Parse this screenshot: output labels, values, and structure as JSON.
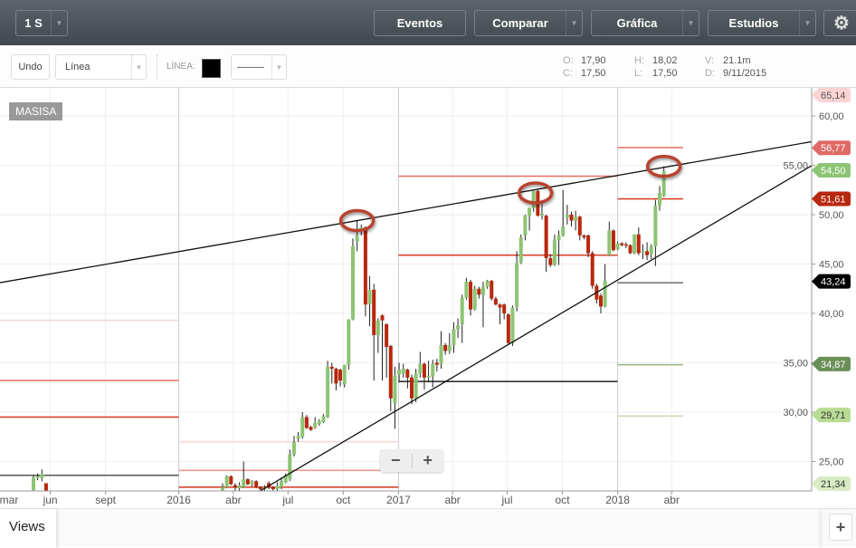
{
  "topbar": {
    "period": "1 S",
    "buttons": [
      "Eventos",
      "Comparar",
      "Gráfica",
      "Estudios"
    ],
    "settings_icon": "gear-icon"
  },
  "drawing_toolbar": {
    "undo": "Undo",
    "tool": "Línea",
    "line_label": "LÍNEA:",
    "line_color": "#000000",
    "line_style": "———"
  },
  "ohlc": {
    "o_label": "O:",
    "o": "17,90",
    "c_label": "C:",
    "c": "17,50",
    "h_label": "H:",
    "h": "18,02",
    "l_label": "L:",
    "l": "17,50",
    "v_label": "V:",
    "v": "21.1m",
    "d_label": "D:",
    "d": "9/11/2015"
  },
  "symbol": "MASISA",
  "zoom": {
    "minus": "−",
    "plus": "+"
  },
  "views": {
    "label": "Views",
    "add": "+"
  },
  "chart_data": {
    "type": "candlestick",
    "interval": "1 S",
    "ylim": [
      22.0,
      62.8
    ],
    "y_ticks": [
      "60,00",
      "55,00",
      "50,00",
      "45,00",
      "40,00",
      "35,00",
      "30,00",
      "25,00"
    ],
    "y_tick_values": [
      60,
      55,
      50,
      45,
      40,
      35,
      30,
      25
    ],
    "x_ticks": [
      {
        "date": "2015-03-01",
        "label": "mar"
      },
      {
        "date": "2015-06-01",
        "label": "jun"
      },
      {
        "date": "2015-09-01",
        "label": "sept"
      },
      {
        "date": "2016-01-01",
        "label": "2016",
        "year": true
      },
      {
        "date": "2016-04-01",
        "label": "abr"
      },
      {
        "date": "2016-07-01",
        "label": "jul"
      },
      {
        "date": "2016-10-01",
        "label": "oct"
      },
      {
        "date": "2017-01-01",
        "label": "2017",
        "year": true
      },
      {
        "date": "2017-04-01",
        "label": "abr"
      },
      {
        "date": "2017-07-01",
        "label": "jul"
      },
      {
        "date": "2017-10-01",
        "label": "oct"
      },
      {
        "date": "2018-01-01",
        "label": "2018",
        "year": true
      },
      {
        "date": "2018-04-01",
        "label": "abr"
      }
    ],
    "grid": true,
    "colors": {
      "up": "#8cc474",
      "down": "#b8280e",
      "wick": "#222222"
    },
    "candles": [
      [
        "2015-05-04",
        22.1,
        23.6,
        22.0,
        23.4
      ],
      [
        "2015-05-11",
        23.4,
        23.8,
        23.1,
        23.5
      ],
      [
        "2015-05-18",
        23.3,
        24.2,
        23.0,
        23.7
      ],
      [
        "2015-05-25",
        22.8,
        22.8,
        22.0,
        22.0
      ],
      [
        "2016-03-14",
        22.1,
        22.8,
        22.0,
        22.4
      ],
      [
        "2016-03-21",
        22.4,
        23.6,
        22.3,
        23.5
      ],
      [
        "2016-03-28",
        23.5,
        23.6,
        22.6,
        22.7
      ],
      [
        "2016-04-04",
        22.6,
        22.8,
        22.0,
        22.4
      ],
      [
        "2016-04-11",
        22.3,
        22.9,
        22.0,
        22.6
      ],
      [
        "2016-04-18",
        22.4,
        25.0,
        22.3,
        23.2
      ],
      [
        "2016-04-25",
        23.2,
        23.3,
        22.6,
        22.7
      ],
      [
        "2016-05-02",
        22.7,
        23.1,
        22.5,
        23.0
      ],
      [
        "2016-05-09",
        23.0,
        23.1,
        22.3,
        22.4
      ],
      [
        "2016-05-16",
        22.4,
        22.5,
        22.0,
        22.2
      ],
      [
        "2016-05-23",
        22.2,
        22.6,
        22.0,
        22.4
      ],
      [
        "2016-05-30",
        22.8,
        23.0,
        22.2,
        22.4
      ],
      [
        "2016-06-06",
        22.4,
        22.5,
        22.0,
        22.2
      ],
      [
        "2016-06-13",
        22.2,
        22.9,
        22.0,
        22.5
      ],
      [
        "2016-06-20",
        22.4,
        23.4,
        22.2,
        23.0
      ],
      [
        "2016-06-27",
        22.9,
        23.8,
        22.8,
        23.6
      ],
      [
        "2016-07-04",
        23.2,
        26.2,
        23.0,
        25.7
      ],
      [
        "2016-07-11",
        25.7,
        27.6,
        25.5,
        27.0
      ],
      [
        "2016-07-18",
        27.3,
        28.0,
        27.0,
        27.6
      ],
      [
        "2016-07-25",
        27.5,
        30.0,
        27.3,
        29.5
      ],
      [
        "2016-08-01",
        29.5,
        29.7,
        28.3,
        28.4
      ],
      [
        "2016-08-08",
        28.5,
        28.6,
        28.1,
        28.2
      ],
      [
        "2016-08-15",
        28.4,
        29.5,
        28.3,
        28.9
      ],
      [
        "2016-08-22",
        28.8,
        29.3,
        28.6,
        29.1
      ],
      [
        "2016-08-29",
        29.0,
        29.8,
        28.9,
        29.6
      ],
      [
        "2016-09-05",
        29.5,
        35.2,
        29.4,
        34.6
      ],
      [
        "2016-09-12",
        34.6,
        35.0,
        32.9,
        34.4
      ],
      [
        "2016-09-19",
        34.4,
        34.5,
        32.2,
        32.9
      ],
      [
        "2016-09-26",
        34.3,
        34.4,
        32.6,
        33.2
      ],
      [
        "2016-10-03",
        32.8,
        34.8,
        32.5,
        34.8
      ],
      [
        "2016-10-10",
        34.8,
        39.4,
        34.3,
        39.4
      ],
      [
        "2016-10-17",
        39.4,
        47.6,
        39.3,
        46.8
      ],
      [
        "2016-10-24",
        47.3,
        49.4,
        46.3,
        47.9
      ],
      [
        "2016-10-31",
        48.3,
        49.0,
        47.9,
        48.7
      ],
      [
        "2016-11-07",
        48.7,
        48.8,
        39.7,
        40.9
      ],
      [
        "2016-11-14",
        40.9,
        43.8,
        38.7,
        42.4
      ],
      [
        "2016-11-21",
        42.4,
        43.0,
        33.2,
        37.8
      ],
      [
        "2016-11-28",
        37.8,
        39.5,
        36.0,
        39.3
      ],
      [
        "2016-12-05",
        39.8,
        39.9,
        33.2,
        39.3
      ],
      [
        "2016-12-12",
        38.9,
        39.0,
        33.5,
        36.6
      ],
      [
        "2016-12-19",
        36.7,
        36.8,
        30.1,
        31.4
      ],
      [
        "2016-12-26",
        30.9,
        34.6,
        28.3,
        33.7
      ],
      [
        "2017-01-02",
        33.8,
        35.0,
        33.0,
        34.3
      ],
      [
        "2017-01-09",
        33.9,
        34.9,
        33.5,
        34.4
      ],
      [
        "2017-01-16",
        34.3,
        34.4,
        32.4,
        33.5
      ],
      [
        "2017-01-23",
        33.5,
        33.8,
        30.8,
        31.4
      ],
      [
        "2017-01-30",
        31.4,
        34.4,
        31.0,
        33.9
      ],
      [
        "2017-02-06",
        33.9,
        36.1,
        33.5,
        34.9
      ],
      [
        "2017-02-13",
        34.9,
        35.0,
        32.3,
        33.5
      ],
      [
        "2017-02-20",
        33.5,
        35.2,
        33.0,
        33.7
      ],
      [
        "2017-02-27",
        33.6,
        35.3,
        32.5,
        34.9
      ],
      [
        "2017-03-06",
        35.0,
        35.4,
        34.1,
        34.8
      ],
      [
        "2017-03-13",
        34.9,
        38.2,
        34.4,
        36.8
      ],
      [
        "2017-03-20",
        36.8,
        37.0,
        35.8,
        36.2
      ],
      [
        "2017-03-27",
        36.2,
        38.0,
        35.9,
        36.8
      ],
      [
        "2017-04-03",
        36.8,
        39.1,
        36.0,
        38.4
      ],
      [
        "2017-04-10",
        38.4,
        39.5,
        37.5,
        38.8
      ],
      [
        "2017-04-17",
        38.9,
        41.9,
        37.0,
        41.6
      ],
      [
        "2017-04-24",
        41.6,
        43.6,
        41.4,
        43.2
      ],
      [
        "2017-05-01",
        43.2,
        43.4,
        39.8,
        40.4
      ],
      [
        "2017-05-08",
        40.4,
        42.8,
        40.3,
        42.5
      ],
      [
        "2017-05-15",
        42.5,
        42.7,
        41.5,
        41.9
      ],
      [
        "2017-05-22",
        41.9,
        43.2,
        38.6,
        42.7
      ],
      [
        "2017-05-29",
        42.7,
        43.4,
        42.5,
        43.3
      ],
      [
        "2017-06-05",
        43.3,
        43.4,
        41.3,
        41.5
      ],
      [
        "2017-06-12",
        41.5,
        41.7,
        40.8,
        40.9
      ],
      [
        "2017-06-19",
        40.9,
        41.0,
        38.9,
        40.6
      ],
      [
        "2017-06-26",
        40.9,
        41.0,
        39.4,
        40.0
      ],
      [
        "2017-07-03",
        39.9,
        40.0,
        36.9,
        37.0
      ],
      [
        "2017-07-10",
        37.0,
        40.8,
        36.7,
        40.6
      ],
      [
        "2017-07-17",
        40.7,
        46.3,
        40.2,
        45.1
      ],
      [
        "2017-07-24",
        45.1,
        48.0,
        45.0,
        47.7
      ],
      [
        "2017-07-31",
        47.9,
        50.0,
        47.4,
        49.9
      ],
      [
        "2017-08-07",
        49.9,
        50.7,
        48.4,
        50.7
      ],
      [
        "2017-08-14",
        50.7,
        52.4,
        50.3,
        52.4
      ],
      [
        "2017-08-21",
        52.4,
        52.5,
        49.8,
        49.9
      ],
      [
        "2017-08-28",
        49.9,
        51.5,
        49.5,
        50.1
      ],
      [
        "2017-09-04",
        49.9,
        50.0,
        44.2,
        45.6
      ],
      [
        "2017-09-11",
        45.6,
        46.0,
        44.7,
        44.9
      ],
      [
        "2017-09-18",
        44.9,
        48.0,
        44.8,
        47.4
      ],
      [
        "2017-09-25",
        47.4,
        48.4,
        44.9,
        47.9
      ],
      [
        "2017-10-02",
        47.9,
        52.5,
        47.8,
        48.8
      ],
      [
        "2017-10-09",
        49.7,
        51.0,
        49.0,
        50.0
      ],
      [
        "2017-10-16",
        50.0,
        50.3,
        48.8,
        49.4
      ],
      [
        "2017-10-23",
        49.4,
        50.4,
        48.4,
        49.8
      ],
      [
        "2017-10-30",
        49.8,
        49.9,
        47.4,
        47.9
      ],
      [
        "2017-11-06",
        47.9,
        48.0,
        47.5,
        47.7
      ],
      [
        "2017-11-13",
        47.9,
        48.0,
        45.7,
        46.1
      ],
      [
        "2017-11-20",
        46.1,
        46.3,
        42.5,
        42.8
      ],
      [
        "2017-11-27",
        42.8,
        43.0,
        41.0,
        41.4
      ],
      [
        "2017-12-04",
        41.8,
        42.0,
        40.0,
        40.7
      ],
      [
        "2017-12-11",
        40.7,
        45.0,
        40.6,
        43.3
      ],
      [
        "2017-12-18",
        45.9,
        49.3,
        45.8,
        48.4
      ],
      [
        "2017-12-25",
        48.4,
        48.5,
        46.3,
        46.4
      ],
      [
        "2018-01-01",
        46.5,
        47.3,
        46.4,
        47.1
      ],
      [
        "2018-01-08",
        47.1,
        47.2,
        46.8,
        46.9
      ],
      [
        "2018-01-15",
        47.0,
        47.2,
        46.6,
        46.9
      ],
      [
        "2018-01-22",
        46.9,
        47.0,
        46.0,
        46.1
      ],
      [
        "2018-01-29",
        46.1,
        48.0,
        46.0,
        48.0
      ],
      [
        "2018-02-05",
        48.0,
        48.7,
        45.9,
        46.1
      ],
      [
        "2018-02-12",
        46.2,
        47.0,
        45.5,
        46.3
      ],
      [
        "2018-02-19",
        46.3,
        47.2,
        45.4,
        45.9
      ],
      [
        "2018-02-26",
        46.0,
        47.0,
        45.5,
        46.8
      ],
      [
        "2018-03-05",
        46.8,
        51.5,
        44.8,
        50.9
      ],
      [
        "2018-03-12",
        50.9,
        52.9,
        50.4,
        52.2
      ],
      [
        "2018-03-19",
        51.9,
        54.9,
        51.8,
        54.4
      ]
    ],
    "level_lines": [
      {
        "from": "2015-03-01",
        "to": "2016-01-01",
        "price": 39.3,
        "color": "#f8d8d8"
      },
      {
        "from": "2015-03-01",
        "to": "2016-01-01",
        "price": 33.2,
        "color": "#e8705e"
      },
      {
        "from": "2015-03-01",
        "to": "2016-01-01",
        "price": 29.5,
        "color": "#d9442e"
      },
      {
        "from": "2015-03-01",
        "to": "2016-01-01",
        "price": 23.6,
        "color": "#555555"
      },
      {
        "from": "2016-01-01",
        "to": "2017-01-01",
        "price": 27.0,
        "color": "#f8d8d8"
      },
      {
        "from": "2016-01-01",
        "to": "2017-01-01",
        "price": 24.1,
        "color": "#e89a92"
      },
      {
        "from": "2016-01-01",
        "to": "2017-01-01",
        "price": 22.4,
        "color": "#d9442e"
      },
      {
        "from": "2017-01-01",
        "to": "2018-01-01",
        "price": 53.9,
        "color": "#e8705e"
      },
      {
        "from": "2017-01-01",
        "to": "2018-01-01",
        "price": 45.9,
        "color": "#d9442e"
      },
      {
        "from": "2017-01-01",
        "to": "2018-01-01",
        "price": 33.1,
        "color": "#333333"
      },
      {
        "from": "2018-01-01",
        "to": "2018-04-20",
        "price": 56.8,
        "color": "#e8705e"
      },
      {
        "from": "2018-01-01",
        "to": "2018-04-20",
        "price": 51.6,
        "color": "#d9442e"
      },
      {
        "from": "2018-01-01",
        "to": "2018-04-20",
        "price": 43.1,
        "color": "#777777"
      },
      {
        "from": "2018-01-01",
        "to": "2018-04-20",
        "price": 34.8,
        "color": "#9ab98a"
      },
      {
        "from": "2018-01-01",
        "to": "2018-04-20",
        "price": 29.6,
        "color": "#c8dcb8"
      }
    ],
    "trend_lines": [
      {
        "from": [
          "2015-03-08",
          43.1
        ],
        "to": [
          "2018-11-21",
          57.4
        ]
      },
      {
        "from": [
          "2016-05-15",
          22.0
        ],
        "to": [
          "2018-11-21",
          55.0
        ]
      }
    ],
    "highlight_circles": [
      {
        "date": "2016-10-24",
        "price": 49.4
      },
      {
        "date": "2017-08-17",
        "price": 52.2
      },
      {
        "date": "2018-03-19",
        "price": 54.9
      }
    ],
    "price_tags": [
      {
        "label": "65,14",
        "price": 65.14,
        "bg": "#fcd3d3",
        "fg": "#555555"
      },
      {
        "label": "56,77",
        "price": 56.77,
        "bg": "#e06a66",
        "fg": "#ffffff"
      },
      {
        "label": "54,50",
        "price": 54.5,
        "bg": "#8cc474",
        "fg": "#ffffff"
      },
      {
        "label": "51,61",
        "price": 51.61,
        "bg": "#b8280e",
        "fg": "#ffffff"
      },
      {
        "label": "43,24",
        "price": 43.24,
        "bg": "#000000",
        "fg": "#ffffff"
      },
      {
        "label": "34,87",
        "price": 34.87,
        "bg": "#6a8f58",
        "fg": "#ffffff"
      },
      {
        "label": "29,71",
        "price": 29.71,
        "bg": "#b8dc94",
        "fg": "#333333"
      },
      {
        "label": "21,34",
        "price": 21.34,
        "bg": "#d8ecc4",
        "fg": "#333333"
      }
    ]
  }
}
